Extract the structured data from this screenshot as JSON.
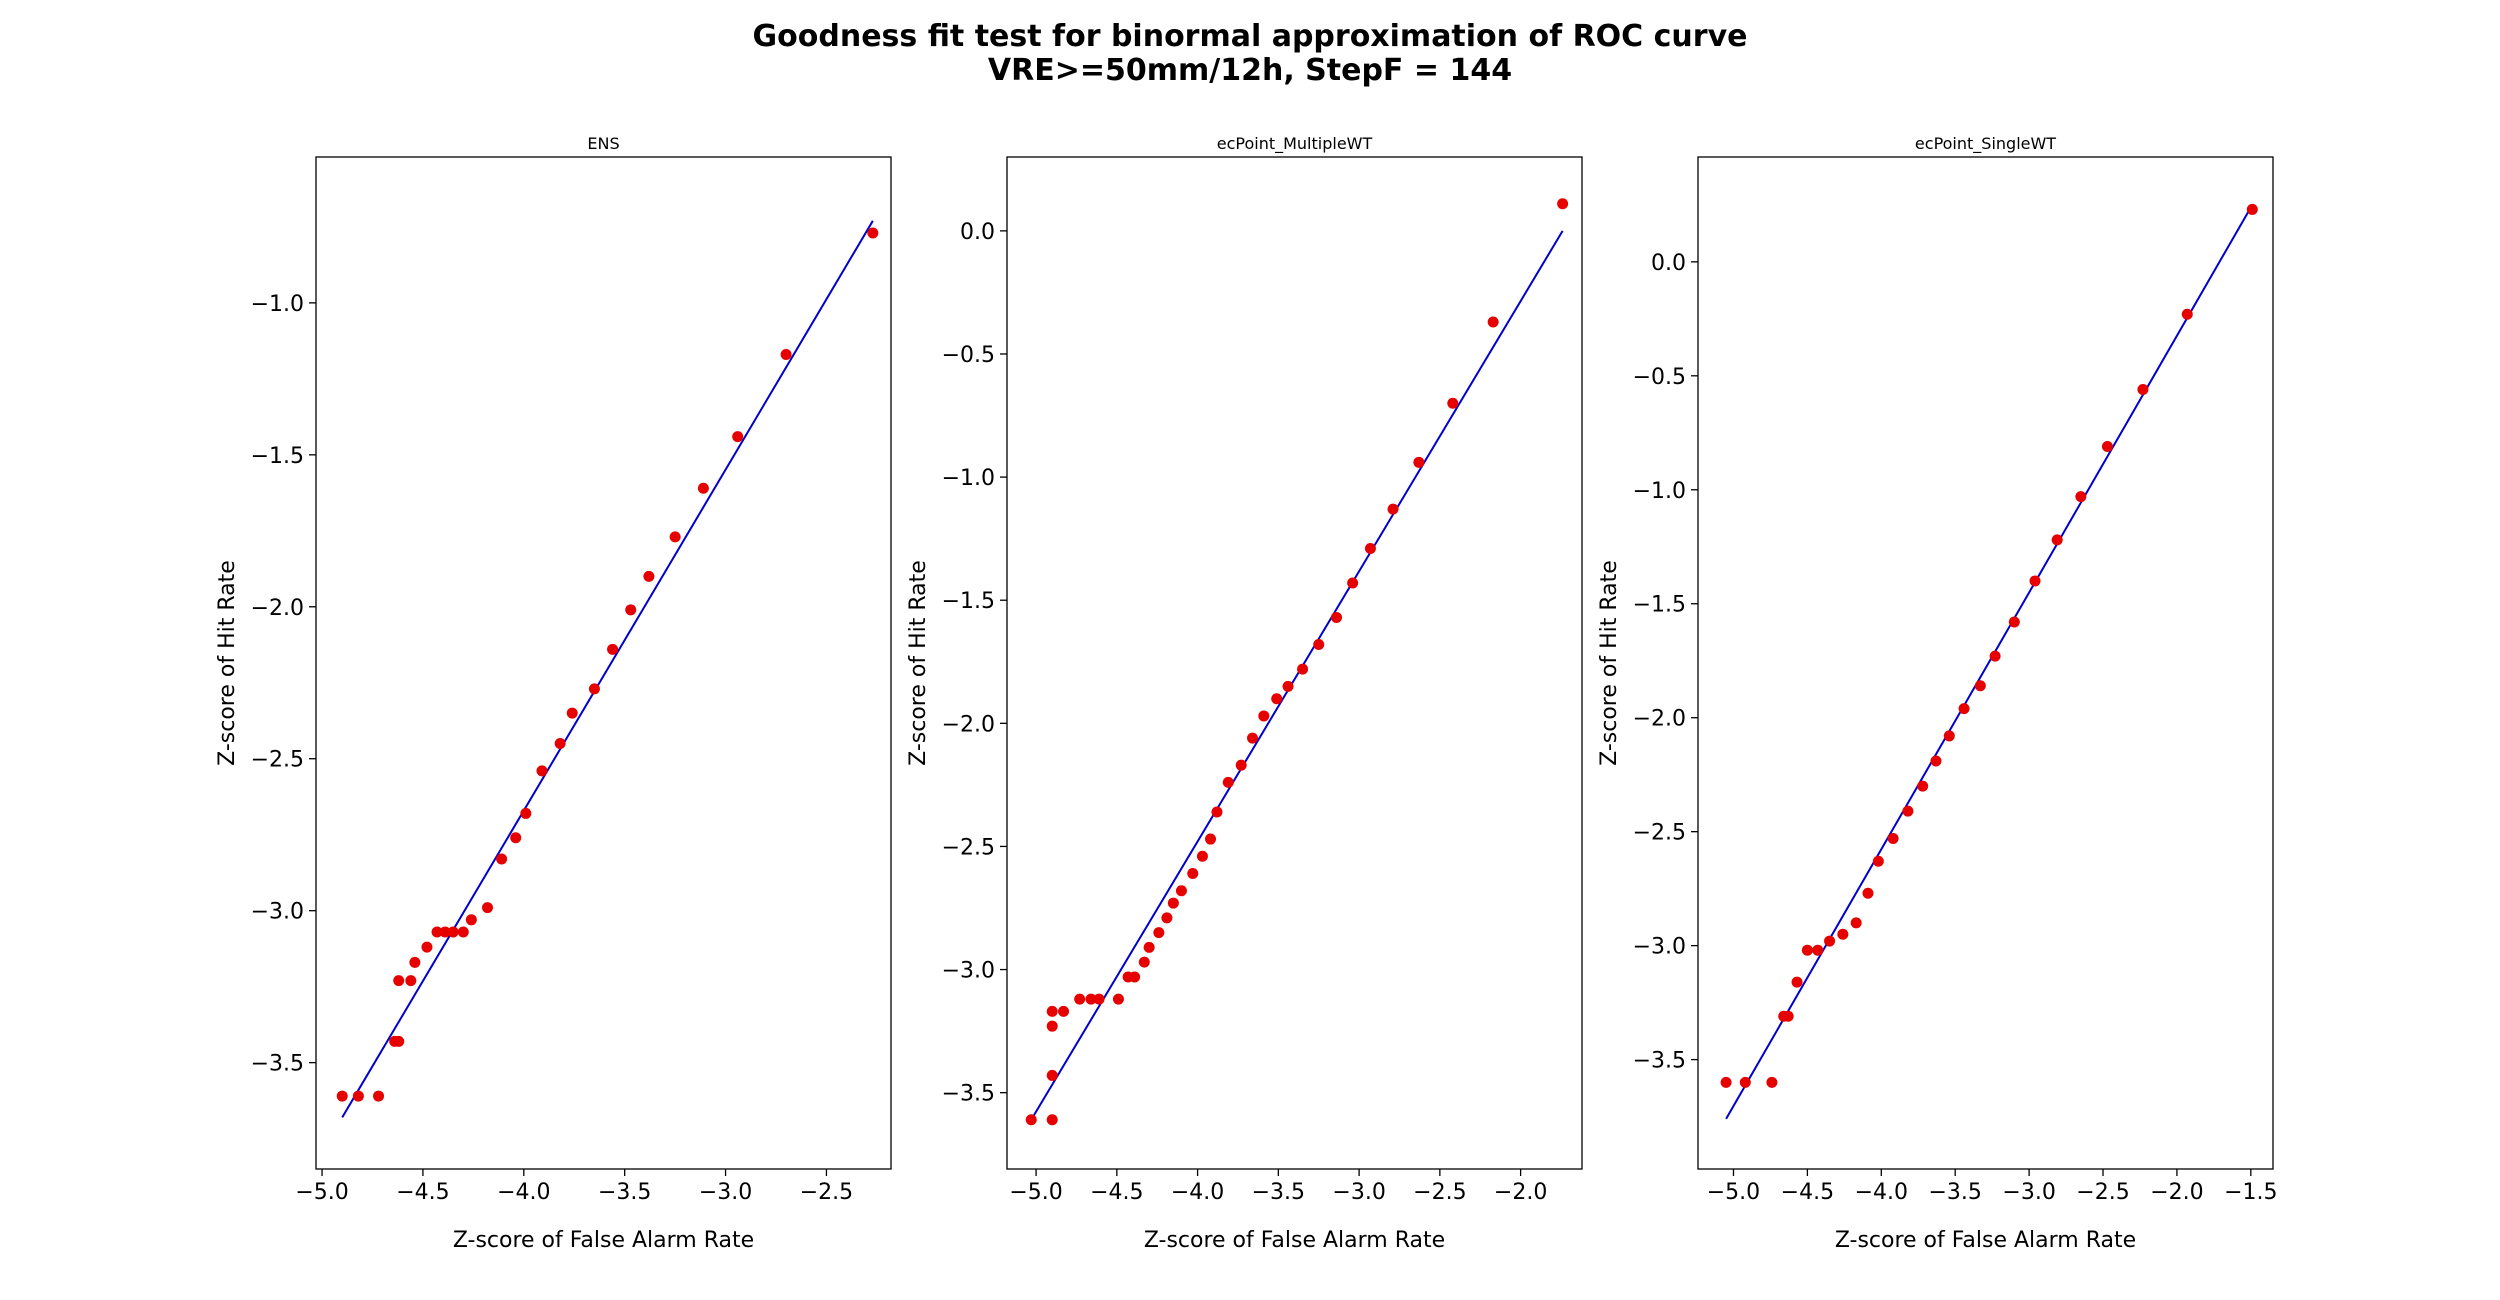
{
  "figure": {
    "title_line1": "Goodness fit test for binormal approximation of ROC curve",
    "title_line2": "VRE>=50mm/12h, StepF = 144"
  },
  "chart_data": [
    {
      "type": "scatter",
      "title": "ENS",
      "xlabel": "Z-score of False Alarm Rate",
      "ylabel": "Z-score of Hit Rate",
      "xlim": [
        -5.03,
        -2.18
      ],
      "ylim": [
        -3.85,
        -0.52
      ],
      "xticks": [
        -5.0,
        -4.5,
        -4.0,
        -3.5,
        -3.0,
        -2.5
      ],
      "yticks": [
        -3.5,
        -3.0,
        -2.5,
        -2.0,
        -1.5,
        -1.0
      ],
      "fit_line": {
        "x": [
          -4.9,
          -2.27
        ],
        "y": [
          -3.68,
          -0.73
        ]
      },
      "points": {
        "x": [
          -4.9,
          -4.82,
          -4.72,
          -4.64,
          -4.62,
          -4.62,
          -4.56,
          -4.54,
          -4.48,
          -4.43,
          -4.39,
          -4.35,
          -4.3,
          -4.26,
          -4.18,
          -4.11,
          -4.04,
          -3.99,
          -3.91,
          -3.82,
          -3.76,
          -3.65,
          -3.56,
          -3.47,
          -3.38,
          -3.25,
          -3.11,
          -2.94,
          -2.7,
          -2.27
        ],
        "y": [
          -3.61,
          -3.61,
          -3.61,
          -3.43,
          -3.43,
          -3.23,
          -3.23,
          -3.17,
          -3.12,
          -3.07,
          -3.07,
          -3.07,
          -3.07,
          -3.03,
          -2.99,
          -2.83,
          -2.76,
          -2.68,
          -2.54,
          -2.45,
          -2.35,
          -2.27,
          -2.14,
          -2.01,
          -1.9,
          -1.77,
          -1.61,
          -1.44,
          -1.17,
          -0.77
        ]
      }
    },
    {
      "type": "scatter",
      "title": "ecPoint_MultipleWT",
      "xlabel": "Z-score of False Alarm Rate",
      "ylabel": "Z-score of Hit Rate",
      "xlim": [
        -5.18,
        -1.62
      ],
      "ylim": [
        -3.81,
        0.3
      ],
      "xticks": [
        -5.0,
        -4.5,
        -4.0,
        -3.5,
        -3.0,
        -2.5,
        -2.0
      ],
      "yticks": [
        -3.5,
        -3.0,
        -2.5,
        -2.0,
        -1.5,
        -1.0,
        -0.5,
        0.0
      ],
      "fit_line": {
        "x": [
          -5.03,
          -1.74
        ],
        "y": [
          -3.61,
          0.0
        ]
      },
      "points": {
        "x": [
          -5.03,
          -4.9,
          -4.9,
          -4.9,
          -4.9,
          -4.83,
          -4.73,
          -4.66,
          -4.61,
          -4.49,
          -4.43,
          -4.39,
          -4.33,
          -4.3,
          -4.24,
          -4.19,
          -4.15,
          -4.1,
          -4.03,
          -3.97,
          -3.92,
          -3.88,
          -3.81,
          -3.73,
          -3.66,
          -3.59,
          -3.51,
          -3.44,
          -3.35,
          -3.25,
          -3.14,
          -3.04,
          -2.93,
          -2.79,
          -2.63,
          -2.42,
          -2.17,
          -1.74
        ],
        "y": [
          -3.61,
          -3.61,
          -3.43,
          -3.23,
          -3.17,
          -3.17,
          -3.12,
          -3.12,
          -3.12,
          -3.12,
          -3.03,
          -3.03,
          -2.97,
          -2.91,
          -2.85,
          -2.79,
          -2.73,
          -2.68,
          -2.61,
          -2.54,
          -2.47,
          -2.36,
          -2.24,
          -2.17,
          -2.06,
          -1.97,
          -1.9,
          -1.85,
          -1.78,
          -1.68,
          -1.57,
          -1.43,
          -1.29,
          -1.13,
          -0.94,
          -0.7,
          -0.37,
          0.11
        ]
      }
    },
    {
      "type": "scatter",
      "title": "ecPoint_SingleWT",
      "xlabel": "Z-score of False Alarm Rate",
      "ylabel": "Z-score of Hit Rate",
      "xlim": [
        -5.24,
        -1.35
      ],
      "ylim": [
        -3.98,
        0.46
      ],
      "xticks": [
        -5.0,
        -4.5,
        -4.0,
        -3.5,
        -3.0,
        -2.5,
        -2.0,
        -1.5
      ],
      "yticks": [
        -3.5,
        -3.0,
        -2.5,
        -2.0,
        -1.5,
        -1.0,
        -0.5,
        0.0
      ],
      "fit_line": {
        "x": [
          -5.05,
          -1.49
        ],
        "y": [
          -3.76,
          0.25
        ]
      },
      "points": {
        "x": [
          -5.05,
          -4.92,
          -4.74,
          -4.66,
          -4.63,
          -4.57,
          -4.5,
          -4.43,
          -4.35,
          -4.26,
          -4.17,
          -4.09,
          -4.02,
          -3.92,
          -3.82,
          -3.72,
          -3.63,
          -3.54,
          -3.44,
          -3.33,
          -3.23,
          -3.1,
          -2.96,
          -2.81,
          -2.65,
          -2.47,
          -2.23,
          -1.93,
          -1.49
        ],
        "y": [
          -3.6,
          -3.6,
          -3.6,
          -3.31,
          -3.31,
          -3.16,
          -3.02,
          -3.02,
          -2.98,
          -2.95,
          -2.9,
          -2.77,
          -2.63,
          -2.53,
          -2.41,
          -2.3,
          -2.19,
          -2.08,
          -1.96,
          -1.86,
          -1.73,
          -1.58,
          -1.4,
          -1.22,
          -1.03,
          -0.81,
          -0.56,
          -0.23,
          0.23
        ]
      }
    }
  ]
}
